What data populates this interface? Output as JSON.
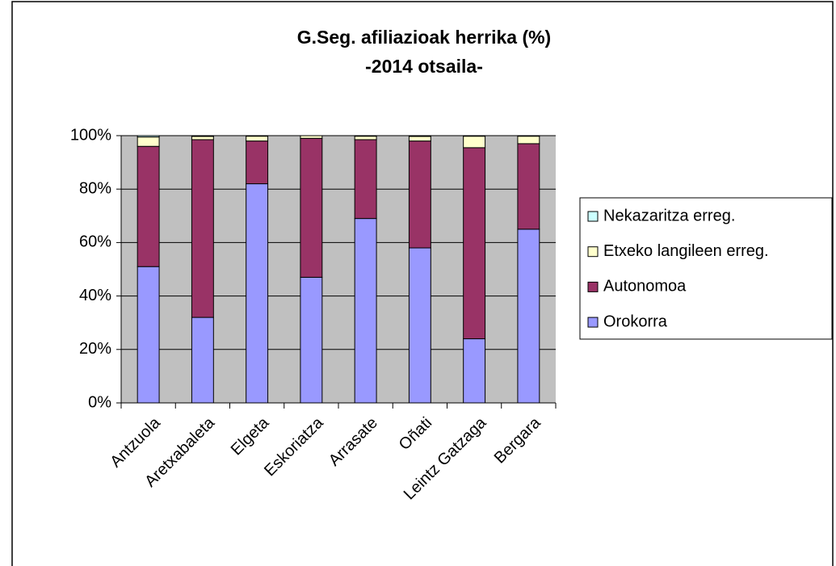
{
  "chart_data": {
    "type": "stacked-bar",
    "title": "G.Seg. afiliazioak herrika (%)",
    "subtitle": "-2014 otsaila-",
    "categories": [
      "Antzuola",
      "Aretxabaleta",
      "Elgeta",
      "Eskoriatza",
      "Arrasate",
      "Oñati",
      "Leintz Gatzaga",
      "Bergara"
    ],
    "series": [
      {
        "name": "Orokorra",
        "color": "#9999ff",
        "values": [
          51,
          32,
          82,
          47,
          69,
          58,
          24,
          65
        ]
      },
      {
        "name": "Autonomoa",
        "color": "#993366",
        "values": [
          45,
          66.5,
          16,
          52,
          29.5,
          40,
          71.5,
          32
        ]
      },
      {
        "name": "Etxeko langileen erreg.",
        "color": "#ffffcc",
        "values": [
          3.5,
          1.2,
          1.8,
          1,
          1.3,
          1.7,
          4.3,
          2.8
        ]
      },
      {
        "name": "Nekazaritza erreg.",
        "color": "#ccffff",
        "values": [
          0.5,
          0.3,
          0.2,
          0,
          0.2,
          0.3,
          0.2,
          0.2
        ]
      }
    ],
    "ylim": [
      0,
      100
    ],
    "yticks": [
      {
        "value": 0,
        "label": "0%"
      },
      {
        "value": 20,
        "label": "20%"
      },
      {
        "value": 40,
        "label": "40%"
      },
      {
        "value": 60,
        "label": "60%"
      },
      {
        "value": 80,
        "label": "80%"
      },
      {
        "value": 100,
        "label": "100%"
      }
    ],
    "grid": true,
    "legend": "right"
  }
}
